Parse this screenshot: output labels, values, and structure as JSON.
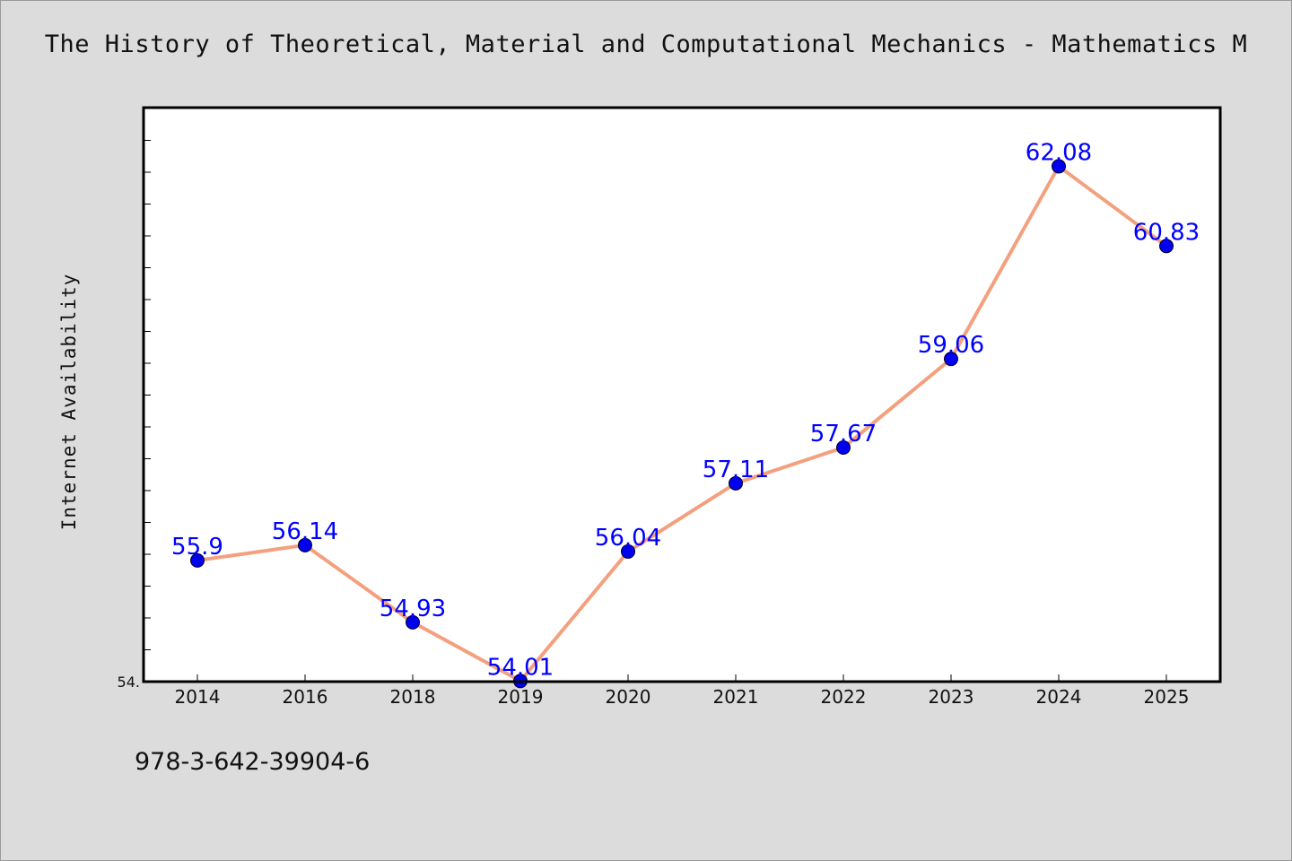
{
  "chart_data": {
    "type": "line",
    "title": "The History of Theoretical, Material and Computational Mechanics - Mathematics M",
    "xlabel": "",
    "ylabel": "Internet Availability",
    "categories": [
      "2014",
      "2016",
      "2018",
      "2019",
      "2020",
      "2021",
      "2022",
      "2023",
      "2024",
      "2025"
    ],
    "series": [
      {
        "values": [
          55.9,
          56.14,
          54.93,
          54.01,
          56.04,
          57.11,
          57.67,
          59.06,
          62.08,
          60.83
        ],
        "data_labels": [
          "55.9",
          "56.14",
          "54.93",
          "54.01",
          "56.04",
          "57.11",
          "57.67",
          "59.06",
          "62.08",
          "60.83"
        ]
      }
    ],
    "ylim": [
      54.0,
      63.0
    ],
    "y_tick_label": "54.",
    "grid": false,
    "line_color": "#f4a07e",
    "marker_color": "#0000ee",
    "label_color": "#0000ff"
  },
  "footer": {
    "text": "978-3-642-39904-6"
  }
}
